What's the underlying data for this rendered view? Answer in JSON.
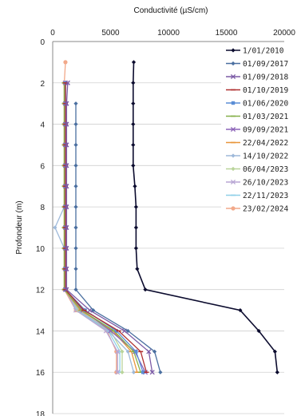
{
  "chart_data": {
    "type": "line",
    "title": "Conductivité (µS/cm)",
    "xlabel": "Conductivité (µS/cm)",
    "ylabel": "Profondeur (m)",
    "xlim": [
      0,
      20000
    ],
    "ylim": [
      0,
      18
    ],
    "x_ticks": [
      "0",
      "5000",
      "10000",
      "15000",
      "20000"
    ],
    "y_ticks": [
      "0",
      "2",
      "4",
      "6",
      "8",
      "10",
      "12",
      "14",
      "16",
      "18"
    ],
    "y_inverted": true,
    "grid": "horizontal",
    "legend_position": "top-right",
    "series": [
      {
        "name": "1/01/2010",
        "color": "#0b0b2e",
        "marker": "diamond",
        "x": [
          7000,
          6950,
          6950,
          6950,
          6950,
          6950,
          7100,
          7200,
          7200,
          7200,
          7300,
          8000,
          16200,
          17800,
          19200,
          19400
        ],
        "y": [
          1,
          2,
          3,
          4,
          5,
          6,
          7,
          8,
          9,
          10,
          11,
          12,
          13,
          14,
          15,
          16
        ]
      },
      {
        "name": "01/09/2017",
        "color": "#4a6fa0",
        "marker": "diamond",
        "x": [
          2000,
          2000,
          2000,
          2000,
          2000,
          2000,
          2000,
          2000,
          2000,
          2000,
          3500,
          6500,
          8800,
          9300
        ],
        "y": [
          3,
          4,
          5,
          6,
          7,
          8,
          9,
          10,
          11,
          12,
          13,
          14,
          15,
          16
        ]
      },
      {
        "name": "01/09/2018",
        "color": "#7b5aa6",
        "marker": "cross",
        "x": [
          1300,
          1200,
          1200,
          1200,
          1200,
          1200,
          1200,
          1200,
          1200,
          1200,
          1200,
          3200,
          6200,
          8300,
          8600
        ],
        "y": [
          2,
          3,
          4,
          5,
          6,
          7,
          8,
          9,
          10,
          11,
          12,
          13,
          14,
          15,
          16
        ]
      },
      {
        "name": "01/10/2019",
        "color": "#b03030",
        "marker": "dash",
        "x": [
          1100,
          1100,
          1100,
          1100,
          1100,
          1100,
          1100,
          1100,
          1100,
          1100,
          1100,
          2700,
          5700,
          7600,
          8100
        ],
        "y": [
          2,
          3,
          4,
          5,
          6,
          7,
          8,
          9,
          10,
          11,
          12,
          13,
          14,
          15,
          16
        ]
      },
      {
        "name": "01/06/2020",
        "color": "#5b8ed6",
        "marker": "square",
        "x": [
          1100,
          1100,
          1100,
          1100,
          1100,
          1100,
          1100,
          1100,
          1100,
          1100,
          1100,
          2800,
          5500,
          7200,
          7800
        ],
        "y": [
          2,
          3,
          4,
          5,
          6,
          7,
          8,
          9,
          10,
          11,
          12,
          13,
          14,
          15,
          16
        ]
      },
      {
        "name": "01/03/2021",
        "color": "#86b04a",
        "marker": "dash",
        "x": [
          1000,
          1000,
          1000,
          1000,
          1000,
          1000,
          1000,
          1000,
          1000,
          1000,
          1000,
          2500,
          5300,
          7000,
          7600
        ],
        "y": [
          2,
          3,
          4,
          5,
          6,
          7,
          8,
          9,
          10,
          11,
          12,
          13,
          14,
          15,
          16
        ]
      },
      {
        "name": "09/09/2021",
        "color": "#8c63b8",
        "marker": "cross",
        "x": [
          1100,
          1100,
          1100,
          1100,
          1100,
          1100,
          1100,
          1100,
          1100,
          1100,
          1100,
          2600,
          5000,
          7100,
          8000
        ],
        "y": [
          2,
          3,
          4,
          5,
          6,
          7,
          8,
          9,
          10,
          11,
          12,
          13,
          14,
          15,
          16
        ]
      },
      {
        "name": "22/04/2022",
        "color": "#e8963a",
        "marker": "dash",
        "x": [
          1000,
          1000,
          1000,
          1000,
          1000,
          1000,
          1000,
          1000,
          1000,
          1000,
          1000,
          2400,
          5200,
          6800,
          7300
        ],
        "y": [
          2,
          3,
          4,
          5,
          6,
          7,
          8,
          9,
          10,
          11,
          12,
          13,
          14,
          15,
          16
        ]
      },
      {
        "name": "14/10/2022",
        "color": "#9eb9da",
        "marker": "diamond",
        "x": [
          1000,
          1000,
          1000,
          1000,
          1000,
          1000,
          1000,
          200,
          1000,
          1000,
          1000,
          2300,
          4800,
          6500,
          7000
        ],
        "y": [
          2,
          3,
          4,
          5,
          6,
          7,
          8,
          9,
          10,
          11,
          12,
          13,
          14,
          15,
          16
        ]
      },
      {
        "name": "06/04/2023",
        "color": "#b9d49a",
        "marker": "diamond",
        "x": [
          1100,
          1100,
          1100,
          1100,
          1100,
          1100,
          1100,
          1100,
          1100,
          1100,
          1100,
          2200,
          5000,
          6000,
          6000
        ],
        "y": [
          2,
          3,
          4,
          5,
          6,
          7,
          8,
          9,
          10,
          11,
          12,
          13,
          14,
          15,
          16
        ]
      },
      {
        "name": "26/10/2023",
        "color": "#b8a6d4",
        "marker": "cross",
        "x": [
          1100,
          1100,
          1100,
          1100,
          1100,
          1100,
          1100,
          1100,
          1100,
          1100,
          1100,
          2000,
          4600,
          5600,
          5600
        ],
        "y": [
          2,
          3,
          4,
          5,
          6,
          7,
          8,
          9,
          10,
          11,
          12,
          13,
          14,
          15,
          16
        ]
      },
      {
        "name": "22/11/2023",
        "color": "#8fd0e8",
        "marker": "dash",
        "x": [
          1100,
          1100,
          1100,
          1100,
          1100,
          1100,
          1100,
          1100,
          1100,
          1100,
          1100,
          2100,
          4800,
          5800,
          5800
        ],
        "y": [
          2,
          3,
          4,
          5,
          6,
          7,
          8,
          9,
          10,
          11,
          12,
          13,
          14,
          15,
          16
        ]
      },
      {
        "name": "23/02/2024",
        "color": "#f2a98a",
        "marker": "circle",
        "x": [
          1100,
          1000,
          1000,
          1000,
          1000,
          1000,
          1000,
          1000,
          1000,
          1000,
          1000,
          1000,
          2000,
          4700,
          5500,
          5500
        ],
        "y": [
          1,
          2,
          3,
          4,
          5,
          6,
          7,
          8,
          9,
          10,
          11,
          12,
          13,
          14,
          15,
          16
        ]
      }
    ]
  }
}
